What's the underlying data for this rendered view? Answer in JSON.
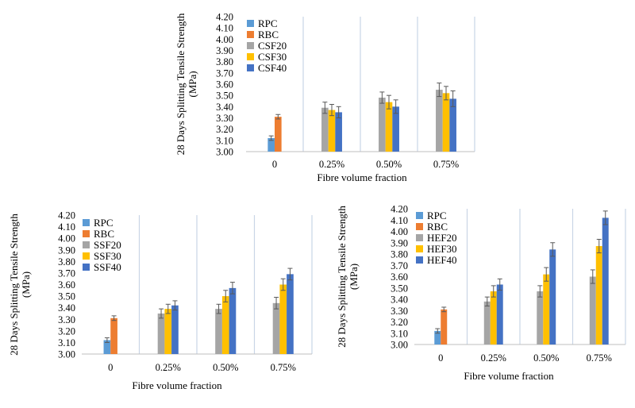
{
  "figure": {
    "background": "#ffffff"
  },
  "chart_data": [
    {
      "type": "bar",
      "panel": "top",
      "categories": [
        "0",
        "0.25%",
        "0.50%",
        "0.75%"
      ],
      "xlabel": "Fibre volume fraction",
      "ylabel": [
        "28 Days Splitting Tensile Strength",
        "(MPa)"
      ],
      "ylim": [
        3.0,
        4.2
      ],
      "yticks": [
        "3.00",
        "3.10",
        "3.20",
        "3.30",
        "3.40",
        "3.50",
        "3.60",
        "3.70",
        "3.80",
        "3.90",
        "4.00",
        "4.10",
        "4.20"
      ],
      "grid": "vertical lines between categories",
      "legend": "top-left",
      "series": [
        {
          "name": "RPC",
          "color": "#5b9bd5",
          "values": [
            3.12,
            null,
            null,
            null
          ],
          "errors": [
            0.02,
            null,
            null,
            null
          ]
        },
        {
          "name": "RBC",
          "color": "#ed7d31",
          "values": [
            3.31,
            null,
            null,
            null
          ],
          "errors": [
            0.02,
            null,
            null,
            null
          ]
        },
        {
          "name": "CSF20",
          "color": "#a5a5a5",
          "values": [
            null,
            3.39,
            3.48,
            3.55
          ],
          "errors": [
            null,
            0.05,
            0.05,
            0.06
          ]
        },
        {
          "name": "CSF30",
          "color": "#ffc000",
          "values": [
            null,
            3.37,
            3.44,
            3.52
          ],
          "errors": [
            null,
            0.05,
            0.06,
            0.06
          ]
        },
        {
          "name": "CSF40",
          "color": "#4472c4",
          "values": [
            null,
            3.35,
            3.4,
            3.47
          ],
          "errors": [
            null,
            0.05,
            0.06,
            0.07
          ]
        }
      ]
    },
    {
      "type": "bar",
      "panel": "bottom-left",
      "categories": [
        "0",
        "0.25%",
        "0.50%",
        "0.75%"
      ],
      "xlabel": "Fibre volume fraction",
      "ylabel": [
        "28 Days Splitting Tensile Strength",
        "(MPa)"
      ],
      "ylim": [
        3.0,
        4.2
      ],
      "yticks": [
        "3.00",
        "3.10",
        "3.20",
        "3.30",
        "3.40",
        "3.50",
        "3.60",
        "3.70",
        "3.80",
        "3.90",
        "4.00",
        "4.10",
        "4.20"
      ],
      "grid": "vertical lines between categories",
      "legend": "top-left",
      "series": [
        {
          "name": "RPC",
          "color": "#5b9bd5",
          "values": [
            3.12,
            null,
            null,
            null
          ],
          "errors": [
            0.02,
            null,
            null,
            null
          ]
        },
        {
          "name": "RBC",
          "color": "#ed7d31",
          "values": [
            3.31,
            null,
            null,
            null
          ],
          "errors": [
            0.02,
            null,
            null,
            null
          ]
        },
        {
          "name": "SSF20",
          "color": "#a5a5a5",
          "values": [
            null,
            3.35,
            3.39,
            3.44
          ],
          "errors": [
            null,
            0.04,
            0.04,
            0.05
          ]
        },
        {
          "name": "SSF30",
          "color": "#ffc000",
          "values": [
            null,
            3.39,
            3.5,
            3.6
          ],
          "errors": [
            null,
            0.04,
            0.05,
            0.05
          ]
        },
        {
          "name": "SSF40",
          "color": "#4472c4",
          "values": [
            null,
            3.42,
            3.57,
            3.69
          ],
          "errors": [
            null,
            0.04,
            0.05,
            0.05
          ]
        }
      ]
    },
    {
      "type": "bar",
      "panel": "bottom-right",
      "categories": [
        "0",
        "0.25%",
        "0.50%",
        "0.75%"
      ],
      "xlabel": "Fibre volume fraction",
      "ylabel": [
        "28 Days Splitting Tensile Strength",
        "(MPa)"
      ],
      "ylim": [
        3.0,
        4.2
      ],
      "yticks": [
        "3.00",
        "3.10",
        "3.20",
        "3.30",
        "3.40",
        "3.50",
        "3.60",
        "3.70",
        "3.80",
        "3.90",
        "4.00",
        "4.10",
        "4.20"
      ],
      "grid": "vertical lines between categories",
      "legend": "top-left",
      "series": [
        {
          "name": "RPC",
          "color": "#5b9bd5",
          "values": [
            3.12,
            null,
            null,
            null
          ],
          "errors": [
            0.02,
            null,
            null,
            null
          ]
        },
        {
          "name": "RBC",
          "color": "#ed7d31",
          "values": [
            3.31,
            null,
            null,
            null
          ],
          "errors": [
            0.02,
            null,
            null,
            null
          ]
        },
        {
          "name": "HEF20",
          "color": "#a5a5a5",
          "values": [
            null,
            3.38,
            3.47,
            3.6
          ],
          "errors": [
            null,
            0.04,
            0.05,
            0.06
          ]
        },
        {
          "name": "HEF30",
          "color": "#ffc000",
          "values": [
            null,
            3.47,
            3.62,
            3.87
          ],
          "errors": [
            null,
            0.05,
            0.06,
            0.06
          ]
        },
        {
          "name": "HEF40",
          "color": "#4472c4",
          "values": [
            null,
            3.53,
            3.84,
            4.12
          ],
          "errors": [
            null,
            0.05,
            0.06,
            0.06
          ]
        }
      ]
    }
  ]
}
